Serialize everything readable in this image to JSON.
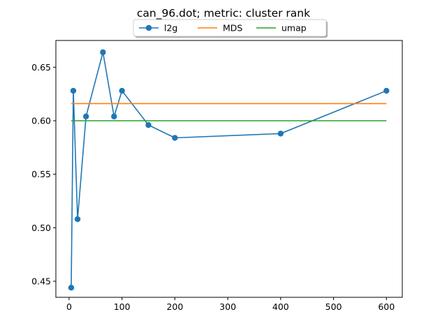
{
  "chart_data": {
    "type": "line",
    "title": "can_96.dot; metric: cluster rank",
    "xlabel": "",
    "ylabel": "",
    "xlim": [
      -25,
      630
    ],
    "ylim": [
      0.435,
      0.675
    ],
    "xticks": [
      0,
      100,
      200,
      300,
      400,
      500,
      600
    ],
    "yticks": [
      0.45,
      0.5,
      0.55,
      0.6,
      0.65
    ],
    "grid": false,
    "legend_position": "top-center",
    "series": [
      {
        "name": "l2g",
        "color": "#1f77b4",
        "marker": "circle",
        "x": [
          4,
          8,
          16,
          32,
          64,
          85,
          100,
          150,
          200,
          400,
          600
        ],
        "y": [
          0.444,
          0.628,
          0.508,
          0.604,
          0.664,
          0.604,
          0.628,
          0.596,
          0.584,
          0.588,
          0.628
        ]
      },
      {
        "name": "MDS",
        "color": "#ff7f0e",
        "marker": "none",
        "x": [
          4,
          600
        ],
        "y": [
          0.616,
          0.616
        ]
      },
      {
        "name": "umap",
        "color": "#2ca02c",
        "marker": "none",
        "x": [
          4,
          600
        ],
        "y": [
          0.6,
          0.6
        ]
      }
    ]
  }
}
